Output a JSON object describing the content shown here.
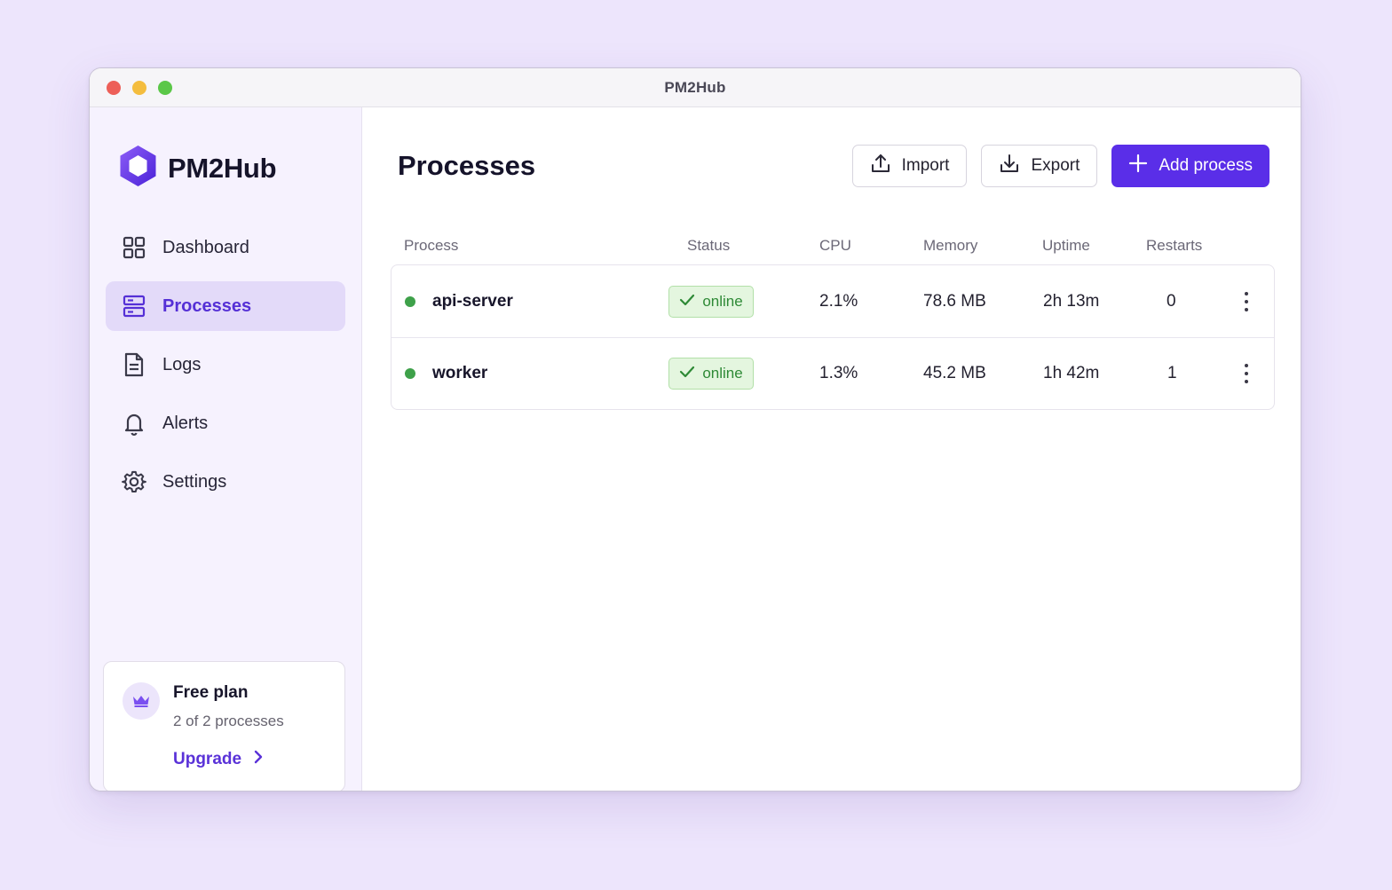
{
  "window": {
    "title": "PM2Hub"
  },
  "brand": {
    "name": "PM2Hub",
    "accent": "#5a2ee8"
  },
  "sidebar": {
    "items": [
      {
        "label": "Dashboard",
        "icon": "grid-icon",
        "active": false
      },
      {
        "label": "Processes",
        "icon": "server-icon",
        "active": true
      },
      {
        "label": "Logs",
        "icon": "document-icon",
        "active": false
      },
      {
        "label": "Alerts",
        "icon": "bell-icon",
        "active": false
      },
      {
        "label": "Settings",
        "icon": "gear-icon",
        "active": false
      }
    ],
    "plan": {
      "title": "Free plan",
      "usage": "2 of 2 processes",
      "upgrade_label": "Upgrade",
      "icon": "crown-icon"
    }
  },
  "main": {
    "title": "Processes",
    "actions": {
      "import_label": "Import",
      "export_label": "Export",
      "add_label": "Add process"
    },
    "table": {
      "columns": [
        "Process",
        "Status",
        "CPU",
        "Memory",
        "Uptime",
        "Restarts"
      ],
      "rows": [
        {
          "name": "api-server",
          "status": "online",
          "cpu": "2.1%",
          "memory": "78.6 MB",
          "uptime": "2h 13m",
          "restarts": "0"
        },
        {
          "name": "worker",
          "status": "online",
          "cpu": "1.3%",
          "memory": "45.2 MB",
          "uptime": "1h 42m",
          "restarts": "1"
        }
      ],
      "status_color": "#3ea14a"
    }
  }
}
